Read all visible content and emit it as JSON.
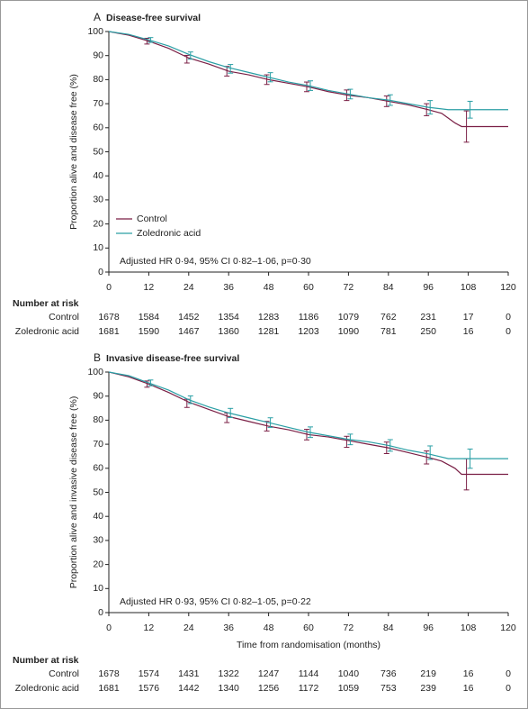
{
  "chart_data": [
    {
      "type": "line",
      "panel": "A",
      "title": "Disease-free survival",
      "y_label": "Proportion alive and disease free (%)",
      "annotation": "Adjusted HR 0·94, 95% CI 0·82–1·06, p=0·30",
      "xlim": [
        0,
        120
      ],
      "xticks": [
        0,
        12,
        24,
        36,
        48,
        60,
        72,
        84,
        96,
        108,
        120
      ],
      "ylim": [
        0,
        100
      ],
      "yticks": [
        0,
        10,
        20,
        30,
        40,
        50,
        60,
        70,
        80,
        90,
        100
      ],
      "legend": "lower left",
      "series": [
        {
          "name": "Control",
          "color": "#7a1f45",
          "x": [
            0,
            6,
            12,
            18,
            24,
            30,
            36,
            42,
            48,
            54,
            60,
            66,
            72,
            78,
            84,
            90,
            96,
            100,
            104,
            106,
            120
          ],
          "values": [
            100,
            98.5,
            96,
            93,
            89,
            86.5,
            83.5,
            82,
            80,
            78.5,
            77,
            75,
            73.5,
            72.5,
            71,
            69.5,
            67.5,
            66,
            62,
            60.5,
            60.5
          ],
          "ci_x": [
            12,
            24,
            36,
            48,
            60,
            72,
            84,
            96,
            108
          ],
          "ci_values": [
            96,
            88.5,
            83.5,
            80,
            77,
            73.5,
            71,
            67.5,
            60.5
          ],
          "ci_errors": [
            1.2,
            1.6,
            2,
            2,
            2,
            2.2,
            2.2,
            2.5,
            6.5
          ]
        },
        {
          "name": "Zoledronic acid",
          "color": "#2a9fa5",
          "x": [
            0,
            6,
            12,
            18,
            24,
            30,
            36,
            42,
            48,
            54,
            60,
            66,
            72,
            78,
            84,
            90,
            96,
            102,
            120
          ],
          "values": [
            100,
            98.8,
            96.5,
            94,
            90.5,
            87.5,
            85,
            83,
            81,
            79,
            77.5,
            75.5,
            74,
            72.5,
            71.5,
            70,
            68.5,
            67.5,
            67.5
          ],
          "ci_x": [
            12,
            24,
            36,
            48,
            60,
            72,
            84,
            96,
            108
          ],
          "ci_values": [
            96.5,
            90,
            84.5,
            81,
            77.5,
            74,
            71.5,
            68.5,
            67.5
          ],
          "ci_errors": [
            1,
            1.5,
            1.8,
            1.9,
            2,
            2,
            2.2,
            2.8,
            3.5
          ]
        }
      ],
      "risk_table": {
        "title": "Number at risk",
        "rows": [
          {
            "name": "Control",
            "values": [
              1678,
              1584,
              1452,
              1354,
              1283,
              1186,
              1079,
              762,
              231,
              17,
              0
            ]
          },
          {
            "name": "Zoledronic acid",
            "values": [
              1681,
              1590,
              1467,
              1360,
              1281,
              1203,
              1090,
              781,
              250,
              16,
              0
            ]
          }
        ]
      }
    },
    {
      "type": "line",
      "panel": "B",
      "title": "Invasive disease-free survival",
      "y_label": "Proportion alive and invasive disease free (%)",
      "x_label": "Time from randomisation (months)",
      "annotation": "Adjusted HR 0·93, 95% CI 0·82–1·05, p=0·22",
      "xlim": [
        0,
        120
      ],
      "xticks": [
        0,
        12,
        24,
        36,
        48,
        60,
        72,
        84,
        96,
        108,
        120
      ],
      "ylim": [
        0,
        100
      ],
      "yticks": [
        0,
        10,
        20,
        30,
        40,
        50,
        60,
        70,
        80,
        90,
        100
      ],
      "series": [
        {
          "name": "Control",
          "color": "#7a1f45",
          "x": [
            0,
            6,
            12,
            18,
            24,
            30,
            36,
            42,
            48,
            54,
            60,
            66,
            72,
            78,
            84,
            90,
            96,
            100,
            104,
            106,
            120
          ],
          "values": [
            100,
            98,
            95,
            91.5,
            87.5,
            84.5,
            81.5,
            79.5,
            77.5,
            76,
            74,
            73,
            71.5,
            70,
            68.5,
            66.5,
            64.5,
            63,
            60,
            57.5,
            57.5
          ],
          "ci_x": [
            12,
            24,
            36,
            48,
            60,
            72,
            84,
            96,
            108
          ],
          "ci_values": [
            95,
            87,
            81,
            77.5,
            74,
            71,
            68.5,
            64.5,
            57.5
          ],
          "ci_errors": [
            1.3,
            1.7,
            2,
            2,
            2.2,
            2.3,
            2.4,
            2.7,
            6.5
          ]
        },
        {
          "name": "Zoledronic acid",
          "color": "#2a9fa5",
          "x": [
            0,
            6,
            12,
            18,
            24,
            30,
            36,
            42,
            48,
            54,
            60,
            66,
            72,
            78,
            84,
            90,
            96,
            102,
            120
          ],
          "values": [
            100,
            98.5,
            95.5,
            92.5,
            88.5,
            85.5,
            83,
            81,
            79,
            77,
            75,
            73.5,
            72,
            71,
            69.5,
            67.5,
            66,
            64,
            64
          ],
          "ci_x": [
            12,
            24,
            36,
            48,
            60,
            72,
            84,
            96,
            108
          ],
          "ci_values": [
            95.5,
            88.5,
            83,
            79,
            75,
            72,
            69.5,
            66.5,
            64
          ],
          "ci_errors": [
            1.2,
            1.6,
            1.9,
            2,
            2.2,
            2.2,
            2.4,
            2.8,
            4
          ]
        }
      ],
      "risk_table": {
        "title": "Number at risk",
        "rows": [
          {
            "name": "Control",
            "values": [
              1678,
              1574,
              1431,
              1322,
              1247,
              1144,
              1040,
              736,
              219,
              16,
              0
            ]
          },
          {
            "name": "Zoledronic acid",
            "values": [
              1681,
              1576,
              1442,
              1340,
              1256,
              1172,
              1059,
              753,
              239,
              16,
              0
            ]
          }
        ]
      }
    }
  ]
}
